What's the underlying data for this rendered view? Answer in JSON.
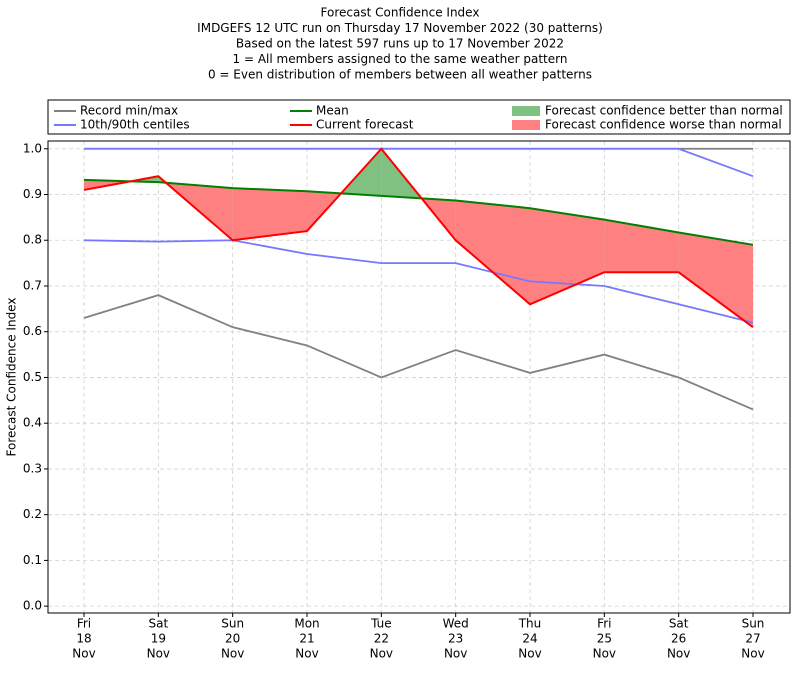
{
  "chart_data": {
    "type": "line",
    "title": [
      "Forecast Confidence Index",
      "IMDGEFS 12 UTC run on Thursday 17 November 2022 (30 patterns)",
      "Based on the latest 597 runs up to 17 November 2022",
      "1 = All members assigned to the same weather pattern",
      "0 = Even distribution of members between all weather patterns"
    ],
    "y_label": "Forecast Confidence Index",
    "categories": [
      [
        "Fri",
        "18",
        "Nov"
      ],
      [
        "Sat",
        "19",
        "Nov"
      ],
      [
        "Sun",
        "20",
        "Nov"
      ],
      [
        "Mon",
        "21",
        "Nov"
      ],
      [
        "Tue",
        "22",
        "Nov"
      ],
      [
        "Wed",
        "23",
        "Nov"
      ],
      [
        "Thu",
        "24",
        "Nov"
      ],
      [
        "Fri",
        "25",
        "Nov"
      ],
      [
        "Sat",
        "26",
        "Nov"
      ],
      [
        "Sun",
        "27",
        "Nov"
      ]
    ],
    "series": [
      {
        "name": "Record min/max",
        "color": "#808080",
        "upper": [
          1.0,
          1.0,
          1.0,
          1.0,
          1.0,
          1.0,
          1.0,
          1.0,
          1.0,
          1.0
        ],
        "lower": [
          0.63,
          0.68,
          0.61,
          0.57,
          0.5,
          0.56,
          0.51,
          0.55,
          0.5,
          0.43
        ]
      },
      {
        "name": "10th/90th centiles",
        "color": "#7777ff",
        "upper": [
          1.0,
          1.0,
          1.0,
          1.0,
          1.0,
          1.0,
          1.0,
          1.0,
          1.0,
          0.94
        ],
        "lower": [
          0.8,
          0.797,
          0.8,
          0.77,
          0.75,
          0.75,
          0.71,
          0.7,
          0.66,
          0.62
        ]
      },
      {
        "name": "Mean",
        "color": "#008000",
        "values": [
          0.932,
          0.927,
          0.914,
          0.907,
          0.897,
          0.887,
          0.87,
          0.845,
          0.817,
          0.79
        ]
      },
      {
        "name": "Current forecast",
        "color": "#ff0000",
        "values": [
          0.91,
          0.94,
          0.8,
          0.82,
          1.0,
          0.8,
          0.66,
          0.73,
          0.73,
          0.61
        ]
      }
    ],
    "fills": [
      {
        "name": "Forecast confidence better than normal",
        "color": "#80c080"
      },
      {
        "name": "Forecast confidence worse than normal",
        "color": "#ff8080"
      }
    ],
    "ylim": [
      -0.015,
      1.017
    ],
    "yticks": [
      {
        "value": 0,
        "label": "0.0"
      },
      0.1,
      0.2,
      0.3,
      0.4,
      0.5,
      0.6,
      0.7,
      0.8,
      0.9,
      {
        "value": 1,
        "label": "1.0"
      }
    ],
    "grid": true
  }
}
